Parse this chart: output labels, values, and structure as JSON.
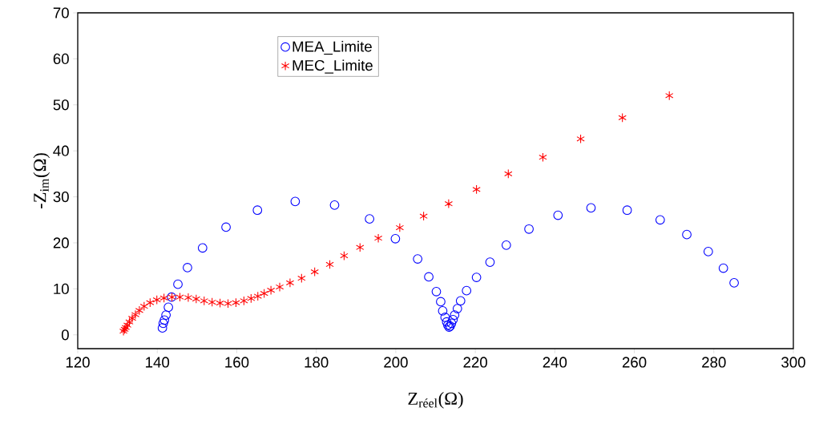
{
  "chart_data": {
    "type": "scatter",
    "xlabel": "Z$_{réel}$(Ω)",
    "ylabel": "-Z$_{im}$(Ω)",
    "xlim": [
      120,
      300
    ],
    "ylim": [
      -3,
      70
    ],
    "xticks": [
      120,
      140,
      160,
      180,
      200,
      220,
      240,
      260,
      280,
      300
    ],
    "yticks": [
      0,
      10,
      20,
      30,
      40,
      50,
      60,
      70
    ],
    "grid": false,
    "legend": "top",
    "series": [
      {
        "name": "MEA_Limite",
        "color": "#0000ff",
        "marker": "circle",
        "x": [
          141.3,
          141.5,
          141.8,
          142.2,
          142.8,
          143.6,
          145.2,
          147.6,
          151.4,
          157.3,
          165.2,
          174.7,
          184.6,
          193.4,
          199.9,
          205.5,
          208.3,
          210.2,
          211.3,
          211.8,
          212.4,
          212.8,
          213.1,
          213.4,
          213.7,
          214,
          214.4,
          214.8,
          215.5,
          216.3,
          217.8,
          220.3,
          223.7,
          227.8,
          233.5,
          240.8,
          249.1,
          258.2,
          266.5,
          273.2,
          278.6,
          282.4,
          285.1
        ],
        "values": [
          1.5,
          2.5,
          3.2,
          4.3,
          6,
          8.2,
          11,
          14.6,
          18.9,
          23.4,
          27.1,
          29,
          28.2,
          25.2,
          20.9,
          16.5,
          12.6,
          9.4,
          7.2,
          5.2,
          3.8,
          2.8,
          2.1,
          1.7,
          1.9,
          2.5,
          3.3,
          4.3,
          5.7,
          7.4,
          9.6,
          12.5,
          15.8,
          19.5,
          23,
          26,
          27.6,
          27.1,
          25,
          21.8,
          18.1,
          14.5,
          11.3
        ]
      },
      {
        "name": "MEC_Limite",
        "color": "#ff0000",
        "marker": "cross",
        "x": [
          131.5,
          131.8,
          132.1,
          132.5,
          133,
          133.7,
          134.5,
          135.5,
          136.7,
          138.2,
          139.9,
          141.7,
          143.7,
          145.7,
          147.8,
          149.8,
          151.8,
          153.8,
          155.8,
          157.8,
          159.8,
          161.8,
          163.6,
          165.3,
          166.9,
          168.6,
          170.8,
          173.4,
          176.3,
          179.6,
          183.4,
          187,
          191,
          195.6,
          201,
          207,
          213.3,
          220.3,
          228.3,
          237,
          246.5,
          257,
          268.8
        ],
        "values": [
          0.8,
          1.2,
          1.6,
          2.1,
          2.8,
          3.6,
          4.4,
          5.3,
          6.2,
          7,
          7.6,
          8,
          8.2,
          8.2,
          8.1,
          7.8,
          7.4,
          7.1,
          6.9,
          6.8,
          7,
          7.4,
          7.9,
          8.4,
          9,
          9.7,
          10.4,
          11.3,
          12.3,
          13.7,
          15.3,
          17.2,
          19,
          21,
          23.3,
          25.8,
          28.5,
          31.6,
          35,
          38.6,
          42.6,
          47.2,
          52
        ]
      }
    ]
  }
}
